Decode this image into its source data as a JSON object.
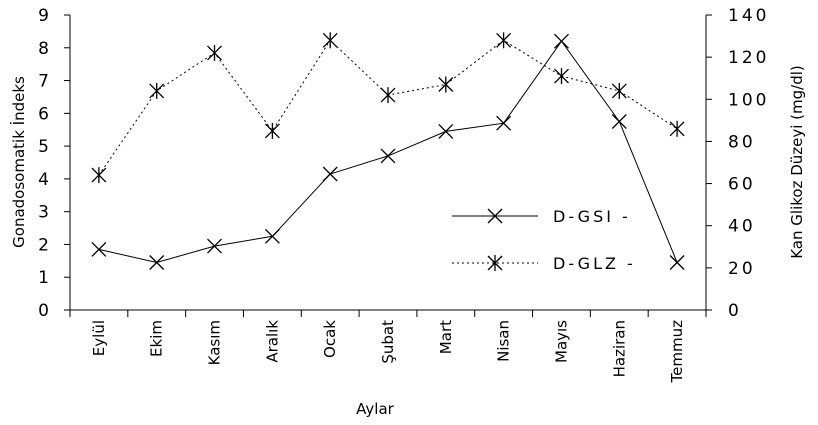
{
  "chart_data": {
    "type": "line",
    "categories": [
      "Eylül",
      "Ekim",
      "Kasım",
      "Aralık",
      "Ocak",
      "Şubat",
      "Mart",
      "Nisan",
      "Mayıs",
      "Haziran",
      "Temmuz"
    ],
    "xlabel": "Aylar",
    "ylabel": "Gonadosomatik İndeks",
    "y2label": "Kan Glikoz Düzeyi (mg/dl)",
    "ylim": [
      0,
      9
    ],
    "y2lim": [
      0,
      140
    ],
    "yticks": [
      "0",
      "1",
      "2",
      "3",
      "4",
      "5",
      "6",
      "7",
      "8",
      "9"
    ],
    "y2ticks": [
      "0",
      "20",
      "40",
      "60",
      "80",
      "100",
      "120",
      "140"
    ],
    "grid": false,
    "legend_position": "right-center",
    "series": [
      {
        "name": "D-GSI -",
        "axis": "left",
        "line_style": "solid",
        "marker": "x",
        "values": [
          1.85,
          1.45,
          1.95,
          2.25,
          4.15,
          4.7,
          5.45,
          5.7,
          8.2,
          5.75,
          1.45
        ]
      },
      {
        "name": "D-GLZ -",
        "axis": "right",
        "line_style": "dotted",
        "marker": "asterisk",
        "values": [
          64,
          104,
          122,
          85,
          128,
          102,
          107,
          128,
          111,
          104,
          86
        ]
      }
    ]
  }
}
